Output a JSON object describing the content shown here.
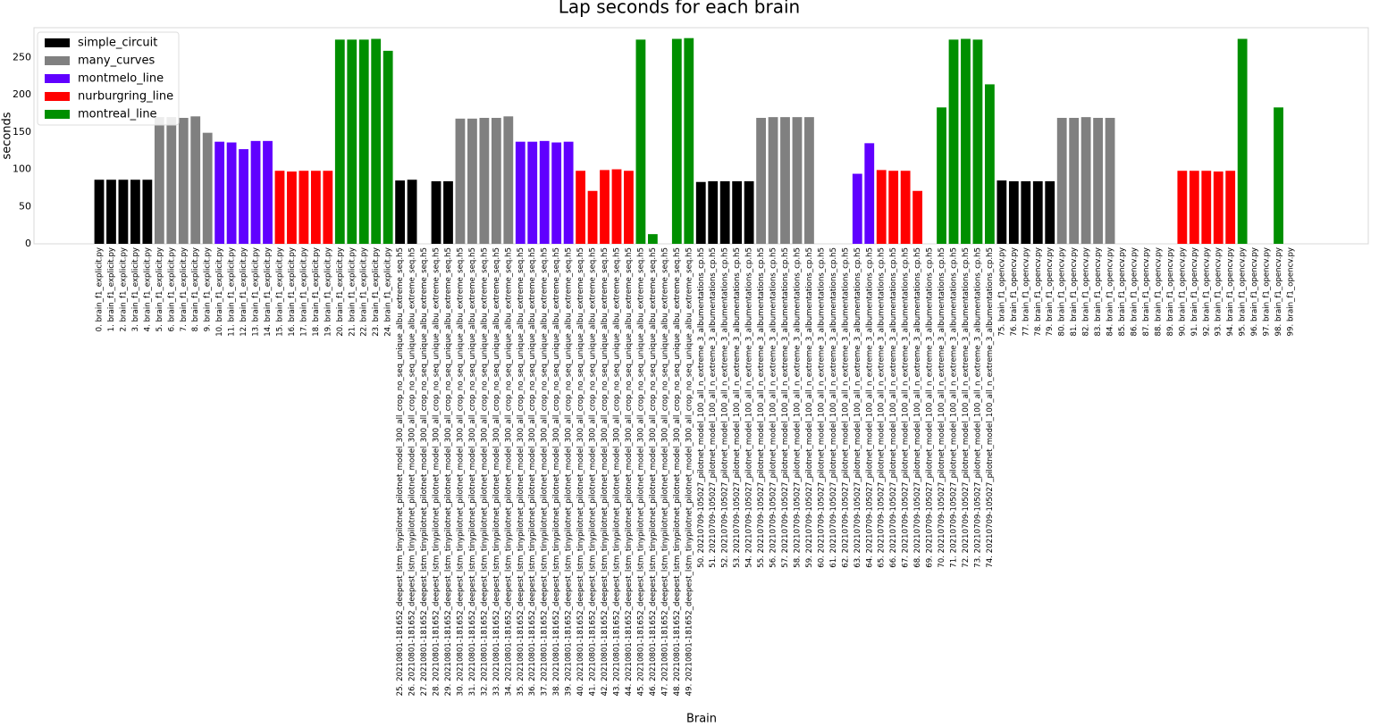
{
  "chart_data": {
    "type": "bar",
    "title": "Lap seconds for each brain",
    "x_label": "Brain",
    "y_label": "seconds",
    "ylim": [
      0,
      290
    ],
    "yticks": [
      0,
      50,
      100,
      150,
      200,
      250
    ],
    "grid": false,
    "legend": "upper left",
    "categories": [
      "0. brain_f1_explicit.py",
      "1. brain_f1_explicit.py",
      "2. brain_f1_explicit.py",
      "3. brain_f1_explicit.py",
      "4. brain_f1_explicit.py",
      "5. brain_f1_explicit.py",
      "6. brain_f1_explicit.py",
      "7. brain_f1_explicit.py",
      "8. brain_f1_explicit.py",
      "9. brain_f1_explicit.py",
      "10. brain_f1_explicit.py",
      "11. brain_f1_explicit.py",
      "12. brain_f1_explicit.py",
      "13. brain_f1_explicit.py",
      "14. brain_f1_explicit.py",
      "15. brain_f1_explicit.py",
      "16. brain_f1_explicit.py",
      "17. brain_f1_explicit.py",
      "18. brain_f1_explicit.py",
      "19. brain_f1_explicit.py",
      "20. brain_f1_explicit.py",
      "21. brain_f1_explicit.py",
      "22. brain_f1_explicit.py",
      "23. brain_f1_explicit.py",
      "24. brain_f1_explicit.py",
      "25. 20210801-181652_deepest_lstm_tinypilotnet_pilotnet_model_300_all_crop_no_seq_unique_albu_extreme_seq.h5",
      "26. 20210801-181652_deepest_lstm_tinypilotnet_pilotnet_model_300_all_crop_no_seq_unique_albu_extreme_seq.h5",
      "27. 20210801-181652_deepest_lstm_tinypilotnet_pilotnet_model_300_all_crop_no_seq_unique_albu_extreme_seq.h5",
      "28. 20210801-181652_deepest_lstm_tinypilotnet_pilotnet_model_300_all_crop_no_seq_unique_albu_extreme_seq.h5",
      "29. 20210801-181652_deepest_lstm_tinypilotnet_pilotnet_model_300_all_crop_no_seq_unique_albu_extreme_seq.h5",
      "30. 20210801-181652_deepest_lstm_tinypilotnet_pilotnet_model_300_all_crop_no_seq_unique_albu_extreme_seq.h5",
      "31. 20210801-181652_deepest_lstm_tinypilotnet_pilotnet_model_300_all_crop_no_seq_unique_albu_extreme_seq.h5",
      "32. 20210801-181652_deepest_lstm_tinypilotnet_pilotnet_model_300_all_crop_no_seq_unique_albu_extreme_seq.h5",
      "33. 20210801-181652_deepest_lstm_tinypilotnet_pilotnet_model_300_all_crop_no_seq_unique_albu_extreme_seq.h5",
      "34. 20210801-181652_deepest_lstm_tinypilotnet_pilotnet_model_300_all_crop_no_seq_unique_albu_extreme_seq.h5",
      "35. 20210801-181652_deepest_lstm_tinypilotnet_pilotnet_model_300_all_crop_no_seq_unique_albu_extreme_seq.h5",
      "36. 20210801-181652_deepest_lstm_tinypilotnet_pilotnet_model_300_all_crop_no_seq_unique_albu_extreme_seq.h5",
      "37. 20210801-181652_deepest_lstm_tinypilotnet_pilotnet_model_300_all_crop_no_seq_unique_albu_extreme_seq.h5",
      "38. 20210801-181652_deepest_lstm_tinypilotnet_pilotnet_model_300_all_crop_no_seq_unique_albu_extreme_seq.h5",
      "39. 20210801-181652_deepest_lstm_tinypilotnet_pilotnet_model_300_all_crop_no_seq_unique_albu_extreme_seq.h5",
      "40. 20210801-181652_deepest_lstm_tinypilotnet_pilotnet_model_300_all_crop_no_seq_unique_albu_extreme_seq.h5",
      "41. 20210801-181652_deepest_lstm_tinypilotnet_pilotnet_model_300_all_crop_no_seq_unique_albu_extreme_seq.h5",
      "42. 20210801-181652_deepest_lstm_tinypilotnet_pilotnet_model_300_all_crop_no_seq_unique_albu_extreme_seq.h5",
      "43. 20210801-181652_deepest_lstm_tinypilotnet_pilotnet_model_300_all_crop_no_seq_unique_albu_extreme_seq.h5",
      "44. 20210801-181652_deepest_lstm_tinypilotnet_pilotnet_model_300_all_crop_no_seq_unique_albu_extreme_seq.h5",
      "45. 20210801-181652_deepest_lstm_tinypilotnet_pilotnet_model_300_all_crop_no_seq_unique_albu_extreme_seq.h5",
      "46. 20210801-181652_deepest_lstm_tinypilotnet_pilotnet_model_300_all_crop_no_seq_unique_albu_extreme_seq.h5",
      "47. 20210801-181652_deepest_lstm_tinypilotnet_pilotnet_model_300_all_crop_no_seq_unique_albu_extreme_seq.h5",
      "48. 20210801-181652_deepest_lstm_tinypilotnet_pilotnet_model_300_all_crop_no_seq_unique_albu_extreme_seq.h5",
      "49. 20210801-181652_deepest_lstm_tinypilotnet_pilotnet_model_300_all_crop_no_seq_unique_albu_extreme_seq.h5",
      "50. 20210709-105027_pilotnet_model_100_all_n_extreme_3_albumentations_cp.h5",
      "51. 20210709-105027_pilotnet_model_100_all_n_extreme_3_albumentations_cp.h5",
      "52. 20210709-105027_pilotnet_model_100_all_n_extreme_3_albumentations_cp.h5",
      "53. 20210709-105027_pilotnet_model_100_all_n_extreme_3_albumentations_cp.h5",
      "54. 20210709-105027_pilotnet_model_100_all_n_extreme_3_albumentations_cp.h5",
      "55. 20210709-105027_pilotnet_model_100_all_n_extreme_3_albumentations_cp.h5",
      "56. 20210709-105027_pilotnet_model_100_all_n_extreme_3_albumentations_cp.h5",
      "57. 20210709-105027_pilotnet_model_100_all_n_extreme_3_albumentations_cp.h5",
      "58. 20210709-105027_pilotnet_model_100_all_n_extreme_3_albumentations_cp.h5",
      "59. 20210709-105027_pilotnet_model_100_all_n_extreme_3_albumentations_cp.h5",
      "60. 20210709-105027_pilotnet_model_100_all_n_extreme_3_albumentations_cp.h5",
      "61. 20210709-105027_pilotnet_model_100_all_n_extreme_3_albumentations_cp.h5",
      "62. 20210709-105027_pilotnet_model_100_all_n_extreme_3_albumentations_cp.h5",
      "63. 20210709-105027_pilotnet_model_100_all_n_extreme_3_albumentations_cp.h5",
      "64. 20210709-105027_pilotnet_model_100_all_n_extreme_3_albumentations_cp.h5",
      "65. 20210709-105027_pilotnet_model_100_all_n_extreme_3_albumentations_cp.h5",
      "66. 20210709-105027_pilotnet_model_100_all_n_extreme_3_albumentations_cp.h5",
      "67. 20210709-105027_pilotnet_model_100_all_n_extreme_3_albumentations_cp.h5",
      "68. 20210709-105027_pilotnet_model_100_all_n_extreme_3_albumentations_cp.h5",
      "69. 20210709-105027_pilotnet_model_100_all_n_extreme_3_albumentations_cp.h5",
      "70. 20210709-105027_pilotnet_model_100_all_n_extreme_3_albumentations_cp.h5",
      "71. 20210709-105027_pilotnet_model_100_all_n_extreme_3_albumentations_cp.h5",
      "72. 20210709-105027_pilotnet_model_100_all_n_extreme_3_albumentations_cp.h5",
      "73. 20210709-105027_pilotnet_model_100_all_n_extreme_3_albumentations_cp.h5",
      "74. 20210709-105027_pilotnet_model_100_all_n_extreme_3_albumentations_cp.h5",
      "75. brain_f1_opencv.py",
      "76. brain_f1_opencv.py",
      "77. brain_f1_opencv.py",
      "78. brain_f1_opencv.py",
      "79. brain_f1_opencv.py",
      "80. brain_f1_opencv.py",
      "81. brain_f1_opencv.py",
      "82. brain_f1_opencv.py",
      "83. brain_f1_opencv.py",
      "84. brain_f1_opencv.py",
      "85. brain_f1_opencv.py",
      "86. brain_f1_opencv.py",
      "87. brain_f1_opencv.py",
      "88. brain_f1_opencv.py",
      "89. brain_f1_opencv.py",
      "90. brain_f1_opencv.py",
      "91. brain_f1_opencv.py",
      "92. brain_f1_opencv.py",
      "93. brain_f1_opencv.py",
      "94. brain_f1_opencv.py",
      "95. brain_f1_opencv.py",
      "96. brain_f1_opencv.py",
      "97. brain_f1_opencv.py",
      "98. brain_f1_opencv.py",
      "99. brain_f1_opencv.py"
    ],
    "series": [
      {
        "name": "simple_circuit",
        "color": "#000000",
        "values": [
          86,
          86,
          86,
          86,
          86,
          null,
          null,
          null,
          null,
          null,
          null,
          null,
          null,
          null,
          null,
          null,
          null,
          null,
          null,
          null,
          null,
          null,
          null,
          null,
          null,
          85,
          86,
          null,
          84,
          84,
          null,
          null,
          null,
          null,
          null,
          null,
          null,
          null,
          null,
          null,
          null,
          null,
          null,
          null,
          null,
          null,
          null,
          null,
          null,
          null,
          83,
          84,
          84,
          84,
          84,
          null,
          null,
          null,
          null,
          null,
          null,
          null,
          null,
          null,
          null,
          null,
          null,
          null,
          null,
          null,
          null,
          null,
          null,
          null,
          null,
          85,
          84,
          84,
          84,
          84,
          null,
          null,
          null,
          null,
          null,
          null,
          null,
          null,
          null,
          null,
          null,
          null,
          null,
          null,
          null,
          null,
          null,
          null,
          null,
          null
        ]
      },
      {
        "name": "many_curves",
        "color": "#808080",
        "values": [
          null,
          null,
          null,
          null,
          null,
          170,
          170,
          169,
          171,
          149,
          null,
          null,
          null,
          null,
          null,
          null,
          null,
          null,
          null,
          null,
          null,
          null,
          null,
          null,
          null,
          null,
          null,
          null,
          null,
          null,
          168,
          168,
          169,
          169,
          171,
          null,
          null,
          null,
          null,
          null,
          null,
          null,
          null,
          null,
          null,
          null,
          null,
          null,
          null,
          null,
          null,
          null,
          null,
          null,
          null,
          169,
          170,
          170,
          170,
          170,
          null,
          null,
          null,
          null,
          null,
          null,
          null,
          null,
          null,
          null,
          null,
          null,
          null,
          null,
          null,
          null,
          null,
          null,
          null,
          null,
          169,
          169,
          170,
          169,
          169,
          null,
          null,
          null,
          null,
          null,
          null,
          null,
          null,
          null,
          null,
          null,
          null,
          null,
          null,
          null
        ]
      },
      {
        "name": "montmelo_line",
        "color": "#6000ff",
        "values": [
          null,
          null,
          null,
          null,
          null,
          null,
          null,
          null,
          null,
          null,
          137,
          136,
          127,
          138,
          138,
          null,
          null,
          null,
          null,
          null,
          null,
          null,
          null,
          null,
          null,
          null,
          null,
          null,
          null,
          null,
          null,
          null,
          null,
          null,
          null,
          137,
          137,
          138,
          136,
          137,
          null,
          null,
          null,
          null,
          null,
          null,
          null,
          null,
          null,
          null,
          null,
          null,
          null,
          null,
          null,
          null,
          null,
          null,
          null,
          null,
          null,
          null,
          null,
          94,
          135,
          null,
          null,
          null,
          null,
          null,
          null,
          null,
          null,
          null,
          null,
          null,
          null,
          null,
          null,
          null,
          null,
          null,
          null,
          null,
          null,
          null,
          null,
          null,
          null,
          null,
          null,
          null,
          null,
          null,
          null,
          null,
          null,
          null,
          null,
          null
        ]
      },
      {
        "name": "nurburgring_line",
        "color": "#ff0000",
        "values": [
          null,
          null,
          null,
          null,
          null,
          null,
          null,
          null,
          null,
          null,
          null,
          null,
          null,
          null,
          null,
          98,
          97,
          98,
          98,
          98,
          null,
          null,
          null,
          null,
          null,
          null,
          null,
          null,
          null,
          null,
          null,
          null,
          null,
          null,
          null,
          null,
          null,
          null,
          null,
          null,
          98,
          71,
          99,
          100,
          98,
          null,
          null,
          null,
          null,
          null,
          null,
          null,
          null,
          null,
          null,
          null,
          null,
          null,
          null,
          null,
          null,
          null,
          null,
          null,
          null,
          99,
          98,
          98,
          71,
          null,
          null,
          null,
          null,
          null,
          null,
          null,
          null,
          null,
          null,
          null,
          null,
          null,
          null,
          null,
          null,
          null,
          null,
          null,
          null,
          null,
          98,
          98,
          98,
          97,
          98,
          null,
          null,
          null,
          null,
          null
        ]
      },
      {
        "name": "montreal_line",
        "color": "#008f00",
        "values": [
          null,
          null,
          null,
          null,
          null,
          null,
          null,
          null,
          null,
          null,
          null,
          null,
          null,
          null,
          null,
          null,
          null,
          null,
          null,
          null,
          274,
          274,
          274,
          275,
          259,
          null,
          null,
          null,
          null,
          null,
          null,
          null,
          null,
          null,
          null,
          null,
          null,
          null,
          null,
          null,
          null,
          null,
          null,
          null,
          null,
          274,
          13,
          null,
          275,
          276,
          null,
          null,
          null,
          null,
          null,
          null,
          null,
          null,
          null,
          null,
          null,
          null,
          null,
          null,
          null,
          null,
          null,
          null,
          null,
          null,
          183,
          274,
          275,
          274,
          214,
          null,
          null,
          null,
          null,
          null,
          null,
          null,
          null,
          null,
          null,
          null,
          null,
          null,
          null,
          null,
          null,
          null,
          null,
          null,
          null,
          275,
          null,
          null,
          183,
          null
        ]
      }
    ]
  }
}
